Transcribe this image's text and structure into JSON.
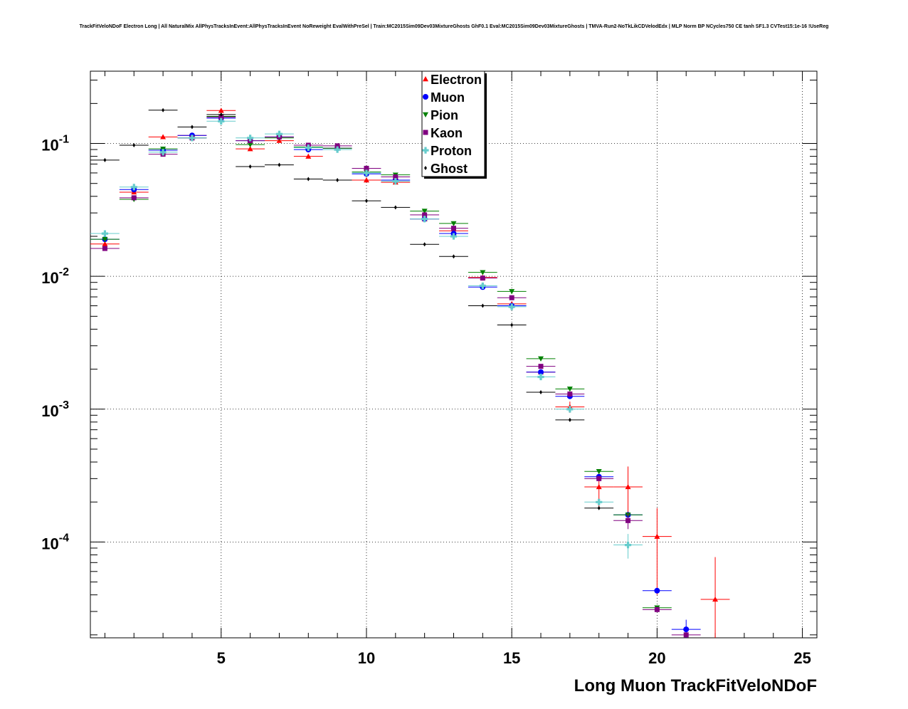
{
  "title": "TrackFitVeloNDoF Electron Long | All NaturalMix AllPhysTracksInEvent:AllPhysTracksInEvent NoReweight EvalWithPreSel | Train:MC2015Sim09Dev03MixtureGhosts GhF0.1 Eval:MC2015Sim09Dev03MixtureGhosts | TMVA-Run2-NoTkLikCDVelodEdx | MLP Norm BP NCycles750 CE tanh SF1.3 CVTest15:1e-16 !UseReg",
  "chart_data": {
    "type": "scatter",
    "title": "TrackFitVeloNDoF Electron Long | All NaturalMix AllPhysTracksInEvent:AllPhysTracksInEvent NoReweight EvalWithPreSel | Train:MC2015Sim09Dev03MixtureGhosts GhF0.1 Eval:MC2015Sim09Dev03MixtureGhosts | TMVA-Run2-NoTkLikCDVelodEdx | MLP Norm BP NCycles750 CE tanh SF1.3 CVTest15:1e-16 !UseReg",
    "xlabel": "Long Muon TrackFitVeloNDoF",
    "ylabel": "",
    "xlim": [
      0.5,
      25.5
    ],
    "ylim": [
      1.9e-05,
      0.35
    ],
    "yscale": "log",
    "grid": true,
    "legend_position": "top-center",
    "x_ticks": [
      "5",
      "10",
      "15",
      "20",
      "25"
    ],
    "y_ticks": [
      "10^-1",
      "10^-2",
      "10^-3",
      "10^-4"
    ],
    "series": [
      {
        "name": "Electron",
        "color": "#ff0000",
        "marker": "triangle-up",
        "x": [
          1,
          2,
          3,
          4,
          5,
          6,
          7,
          8,
          9,
          10,
          11,
          12,
          13,
          14,
          15,
          16,
          17,
          18,
          19,
          20,
          22
        ],
        "y": [
          0.0175,
          0.043,
          0.112,
          0.115,
          0.177,
          0.091,
          0.105,
          0.08,
          0.092,
          0.053,
          0.051,
          0.027,
          0.022,
          0.0098,
          0.0062,
          0.0019,
          0.00104,
          0.00026,
          0.00026,
          0.00011,
          3.7e-05
        ],
        "yerr": [
          0,
          0,
          0,
          0,
          0,
          0,
          0,
          0,
          0,
          0,
          0,
          0,
          0,
          0,
          0,
          0,
          0.0001,
          8e-05,
          0.00011,
          7e-05,
          4e-05
        ]
      },
      {
        "name": "Muon",
        "color": "#0000ff",
        "marker": "circle",
        "x": [
          1,
          2,
          3,
          4,
          5,
          6,
          7,
          8,
          9,
          10,
          11,
          12,
          13,
          14,
          15,
          16,
          17,
          18,
          19,
          20,
          21
        ],
        "y": [
          0.019,
          0.045,
          0.089,
          0.115,
          0.155,
          0.105,
          0.112,
          0.09,
          0.092,
          0.059,
          0.053,
          0.027,
          0.021,
          0.0083,
          0.006,
          0.0019,
          0.00125,
          0.00031,
          0.00016,
          4.3e-05,
          2.2e-05
        ],
        "yerr": [
          0,
          0,
          0,
          0,
          0,
          0,
          0,
          0,
          0,
          0,
          0,
          0,
          0,
          0,
          0,
          0,
          0,
          0,
          0,
          0,
          4e-06
        ]
      },
      {
        "name": "Pion",
        "color": "#008000",
        "marker": "triangle-down",
        "x": [
          1,
          2,
          3,
          4,
          5,
          6,
          7,
          8,
          9,
          10,
          11,
          12,
          13,
          14,
          15,
          16,
          17,
          18,
          19,
          20
        ],
        "y": [
          0.019,
          0.038,
          0.091,
          0.11,
          0.16,
          0.098,
          0.11,
          0.094,
          0.092,
          0.061,
          0.058,
          0.031,
          0.025,
          0.0107,
          0.0077,
          0.0024,
          0.00142,
          0.00034,
          0.00016,
          3.2e-05
        ],
        "yerr": [
          0,
          0,
          0,
          0,
          0,
          0,
          0,
          0,
          0,
          0,
          0,
          0,
          0,
          0,
          0,
          0,
          0,
          0,
          0,
          0
        ]
      },
      {
        "name": "Kaon",
        "color": "#800080",
        "marker": "square",
        "x": [
          1,
          2,
          3,
          4,
          5,
          6,
          7,
          8,
          9,
          10,
          11,
          12,
          13,
          14,
          15,
          16,
          17,
          18,
          19,
          20,
          21
        ],
        "y": [
          0.0162,
          0.039,
          0.083,
          0.11,
          0.158,
          0.105,
          0.112,
          0.097,
          0.096,
          0.065,
          0.056,
          0.029,
          0.023,
          0.0097,
          0.0069,
          0.0021,
          0.0013,
          0.0003,
          0.000145,
          3.1e-05,
          2e-05
        ],
        "yerr": [
          0,
          0,
          0,
          0,
          0,
          0,
          0,
          0,
          0,
          0,
          0,
          0,
          0,
          0,
          0,
          0,
          0,
          0,
          2e-05,
          0,
          0
        ]
      },
      {
        "name": "Proton",
        "color": "#66cccc",
        "marker": "cross",
        "x": [
          1,
          2,
          3,
          4,
          5,
          6,
          7,
          8,
          9,
          10,
          11,
          12,
          13,
          14,
          15,
          16,
          17,
          18,
          19
        ],
        "y": [
          0.021,
          0.047,
          0.086,
          0.11,
          0.147,
          0.11,
          0.118,
          0.093,
          0.09,
          0.06,
          0.052,
          0.027,
          0.02,
          0.0085,
          0.0059,
          0.00175,
          0.001,
          0.0002,
          9.5e-05
        ],
        "yerr": [
          0,
          0,
          0,
          0,
          0,
          0,
          0,
          0,
          0,
          0,
          0,
          0,
          0,
          0,
          0,
          0,
          0,
          0,
          2e-05
        ]
      },
      {
        "name": "Ghost",
        "color": "#000000",
        "marker": "diamond",
        "x": [
          1,
          2,
          3,
          4,
          5,
          6,
          7,
          8,
          9,
          10,
          11,
          12,
          13,
          14,
          15,
          16,
          17,
          18
        ],
        "y": [
          0.075,
          0.097,
          0.178,
          0.133,
          0.165,
          0.067,
          0.069,
          0.054,
          0.053,
          0.037,
          0.033,
          0.0174,
          0.0141,
          0.006,
          0.0043,
          0.00134,
          0.00083,
          0.00018
        ],
        "yerr": [
          0,
          0,
          0,
          0,
          0,
          0,
          0,
          0,
          0,
          0,
          0,
          0,
          0,
          0,
          0,
          0,
          0,
          0
        ]
      }
    ]
  }
}
